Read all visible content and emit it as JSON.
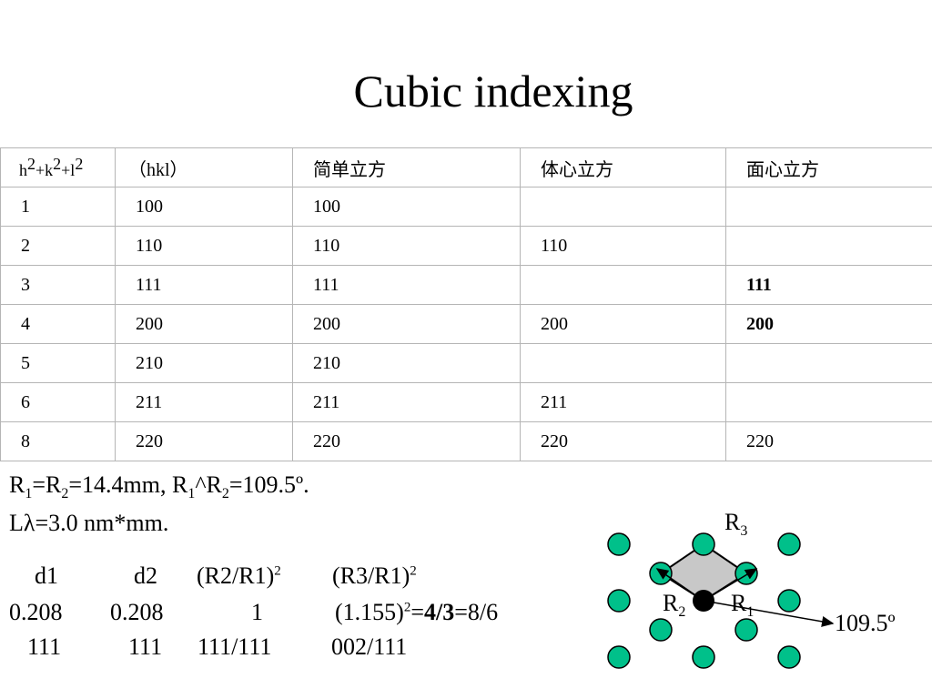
{
  "slide": {
    "title": "Cubic indexing"
  },
  "table": {
    "headers": {
      "h2k2l2": "h2+k2+l2",
      "hkl": "（hkl）",
      "simple_cubic": "简单立方",
      "bcc": "体心立方",
      "fcc": "面心立方"
    },
    "rows": [
      {
        "n": "1",
        "hkl": "100",
        "sc": "100",
        "bcc": "",
        "fcc": ""
      },
      {
        "n": "2",
        "hkl": "110",
        "sc": "110",
        "bcc": "110",
        "fcc": ""
      },
      {
        "n": "3",
        "hkl": "111",
        "sc": "111",
        "bcc": "",
        "fcc": "111"
      },
      {
        "n": "4",
        "hkl": "200",
        "sc": "200",
        "bcc": "200",
        "fcc": "200"
      },
      {
        "n": "5",
        "hkl": "210",
        "sc": "210",
        "bcc": "",
        "fcc": ""
      },
      {
        "n": "6",
        "hkl": "211",
        "sc": "211",
        "bcc": "211",
        "fcc": ""
      },
      {
        "n": "8",
        "hkl": "220",
        "sc": "220",
        "bcc": "220",
        "fcc": "220"
      }
    ]
  },
  "measurements": {
    "line1": "R1=R2=14.4mm, R1^R2=109.5º.",
    "line2": "Lλ=3.0 nm*mm."
  },
  "calculation": {
    "headers": [
      "d1",
      "d2",
      "(R2/R1)2",
      "(R3/R1)2"
    ],
    "values": [
      "0.208",
      "0.208",
      "1",
      "(1.155)2=4/3=8/6"
    ],
    "indices": [
      "111",
      "111",
      "111/111",
      "002/111"
    ]
  },
  "diagram": {
    "label_r1": "R1",
    "label_r2": "R2",
    "label_r3": "R3",
    "angle_label": "109.5º",
    "spot_color": "#00c08a",
    "quad_fill": "#c8c8c8"
  }
}
